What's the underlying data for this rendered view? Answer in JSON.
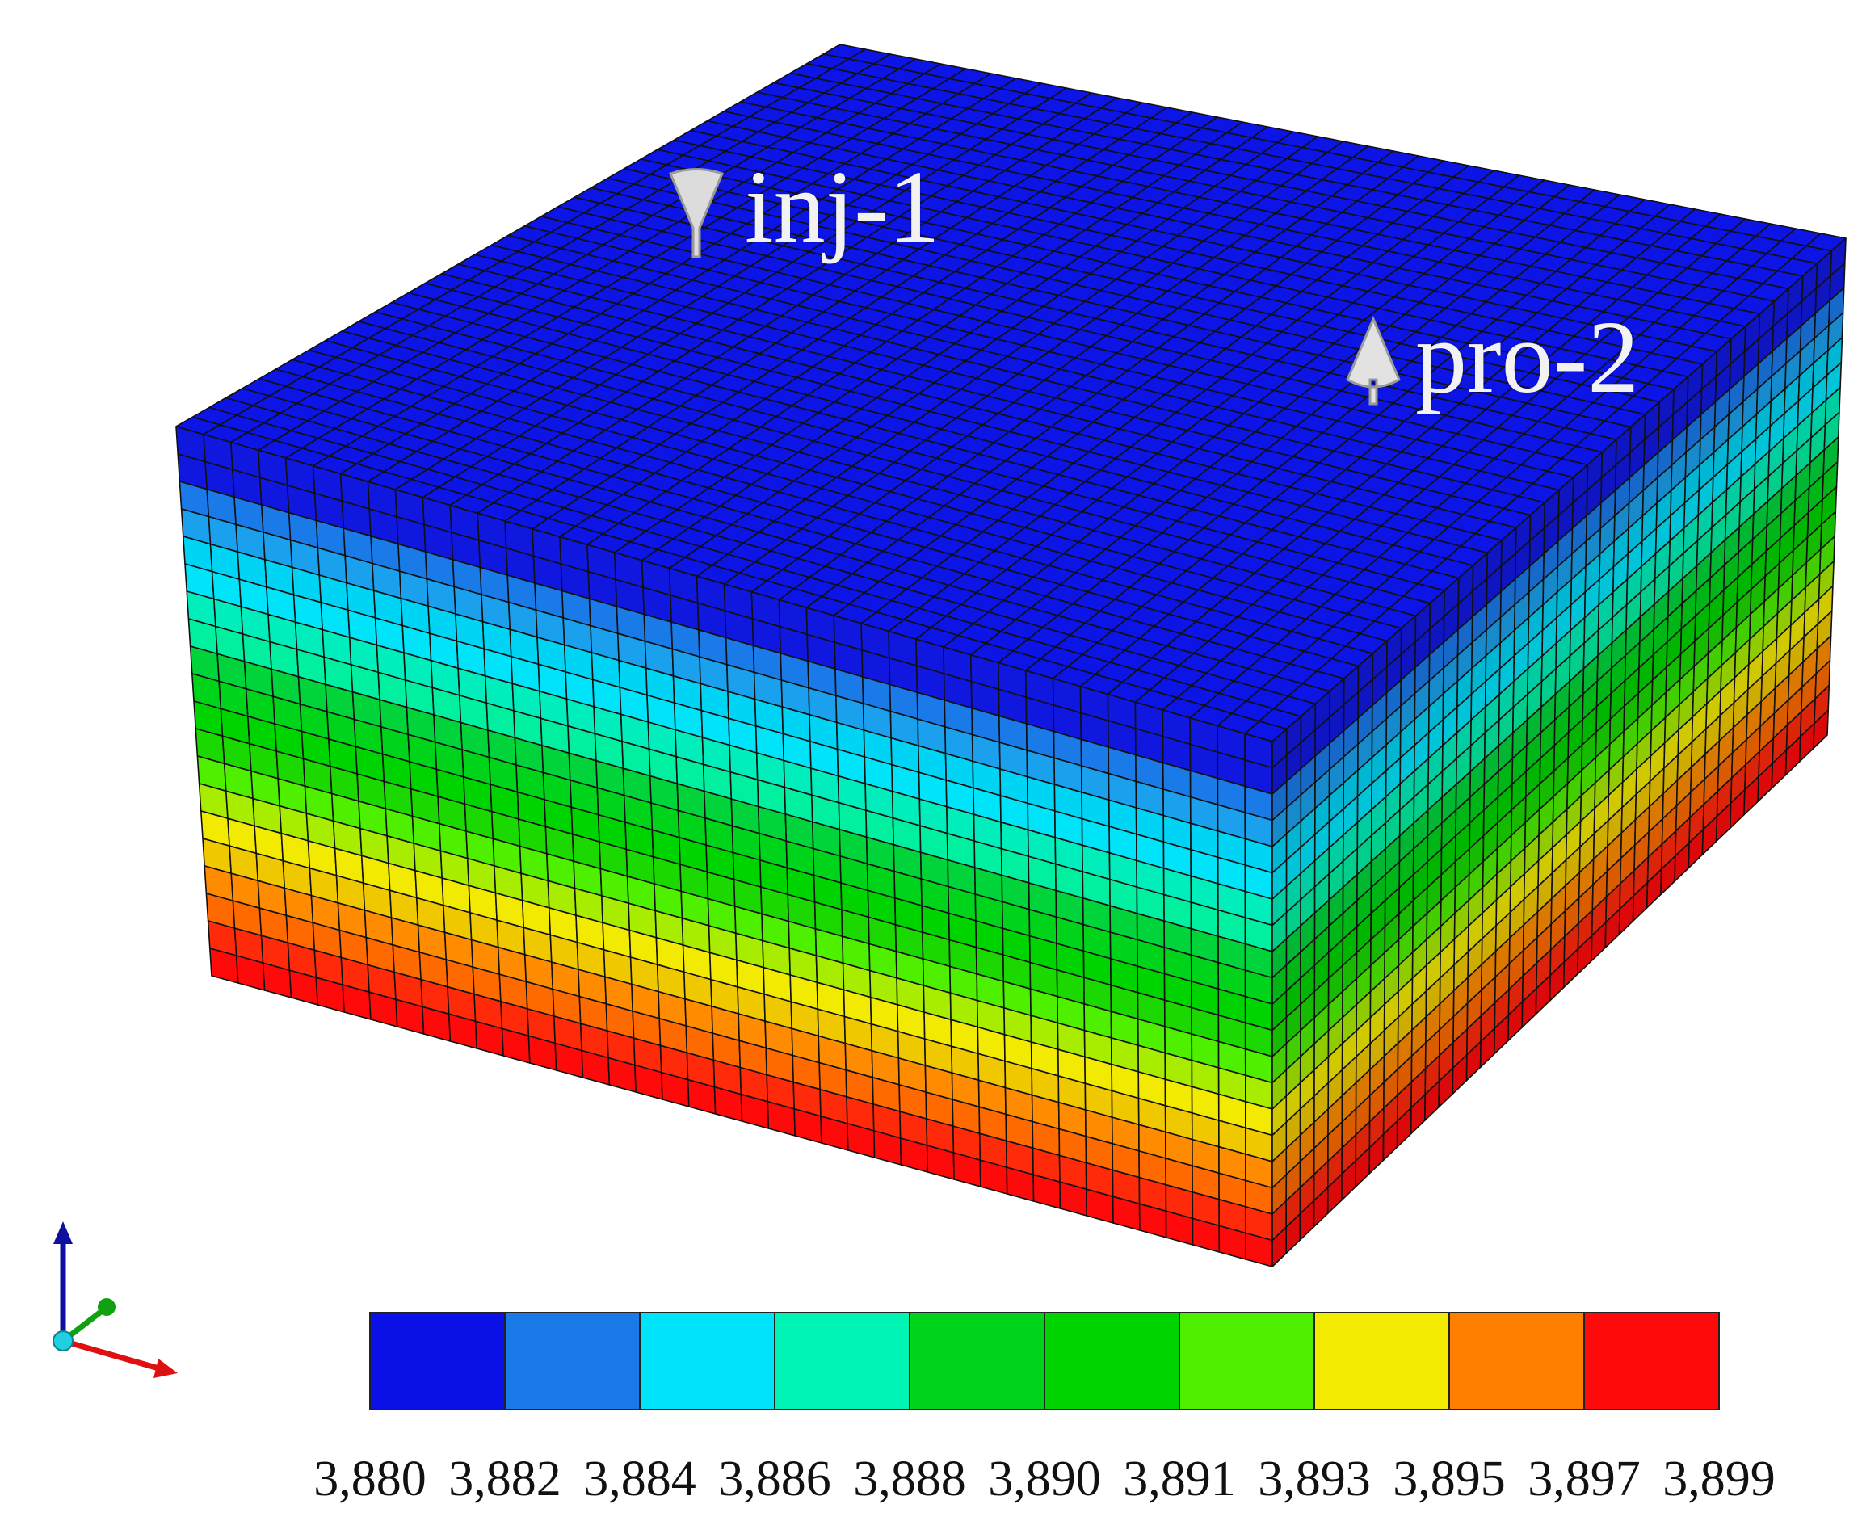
{
  "wells": [
    {
      "name": "inj-1",
      "type": "injector",
      "icon": "funnel-down-icon"
    },
    {
      "name": "pro-2",
      "type": "producer",
      "icon": "cone-up-icon"
    }
  ],
  "legend": {
    "ticks": [
      "3,880",
      "3,882",
      "3,884",
      "3,886",
      "3,888",
      "3,890",
      "3,891",
      "3,893",
      "3,895",
      "3,897",
      "3,899"
    ],
    "colors": [
      "#0a10e6",
      "#1a7ae8",
      "#00e4fa",
      "#00f5b4",
      "#00d41a",
      "#00d400",
      "#4ef000",
      "#f2ea00",
      "#ff8000",
      "#ff0a0a"
    ]
  },
  "layer_colors": [
    "#1018e0",
    "#1018e0",
    "#1a7ae8",
    "#1aa0ec",
    "#00d4f4",
    "#00e4fa",
    "#00eebc",
    "#00f0a0",
    "#00d43a",
    "#00d41a",
    "#00d400",
    "#1ad800",
    "#4ef000",
    "#a8ec00",
    "#f2ea00",
    "#f0c800",
    "#ff8c00",
    "#ff6a00",
    "#ff2a0a",
    "#ff0a0a"
  ],
  "axes_triad": {
    "colors": {
      "vertical": "#1010a0",
      "depth": "#10a010",
      "horizontal": "#e01010",
      "origin": "#20d0e0"
    }
  }
}
